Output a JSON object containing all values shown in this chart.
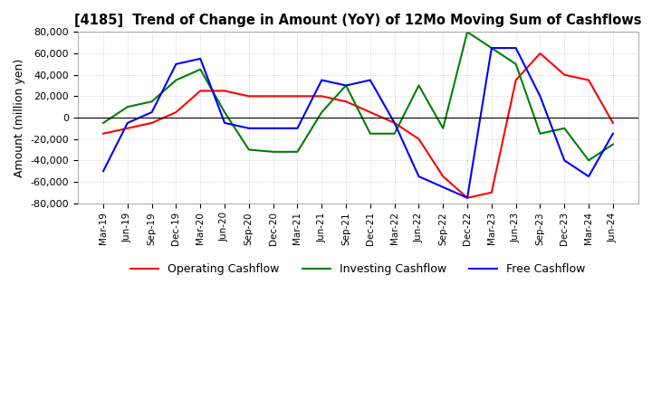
{
  "title": "[4185]  Trend of Change in Amount (YoY) of 12Mo Moving Sum of Cashflows",
  "ylabel": "Amount (million yen)",
  "ylim": [
    -80000,
    80000
  ],
  "yticks": [
    -80000,
    -60000,
    -40000,
    -20000,
    0,
    20000,
    40000,
    60000,
    80000
  ],
  "x_labels": [
    "Mar-19",
    "Jun-19",
    "Sep-19",
    "Dec-19",
    "Mar-20",
    "Jun-20",
    "Sep-20",
    "Dec-20",
    "Mar-21",
    "Jun-21",
    "Sep-21",
    "Dec-21",
    "Mar-22",
    "Jun-22",
    "Sep-22",
    "Dec-22",
    "Mar-23",
    "Jun-23",
    "Sep-23",
    "Dec-23",
    "Mar-24",
    "Jun-24"
  ],
  "operating": [
    -15000,
    -10000,
    -5000,
    5000,
    25000,
    25000,
    20000,
    20000,
    20000,
    20000,
    15000,
    5000,
    -5000,
    -20000,
    -55000,
    -75000,
    -70000,
    35000,
    60000,
    40000,
    35000,
    -5000
  ],
  "investing": [
    -5000,
    10000,
    15000,
    35000,
    45000,
    5000,
    -30000,
    -32000,
    -32000,
    5000,
    30000,
    -15000,
    -15000,
    30000,
    -10000,
    80000,
    65000,
    50000,
    -15000,
    -10000,
    -40000,
    -25000
  ],
  "free": [
    -50000,
    -5000,
    5000,
    50000,
    55000,
    -5000,
    -10000,
    -10000,
    -10000,
    35000,
    30000,
    35000,
    -5000,
    -55000,
    -65000,
    -75000,
    65000,
    65000,
    20000,
    -40000,
    -55000,
    -15000
  ],
  "operating_color": "#ff0000",
  "investing_color": "#008000",
  "free_color": "#0000ff",
  "background_color": "#ffffff",
  "grid_color": "#bbbbbb"
}
